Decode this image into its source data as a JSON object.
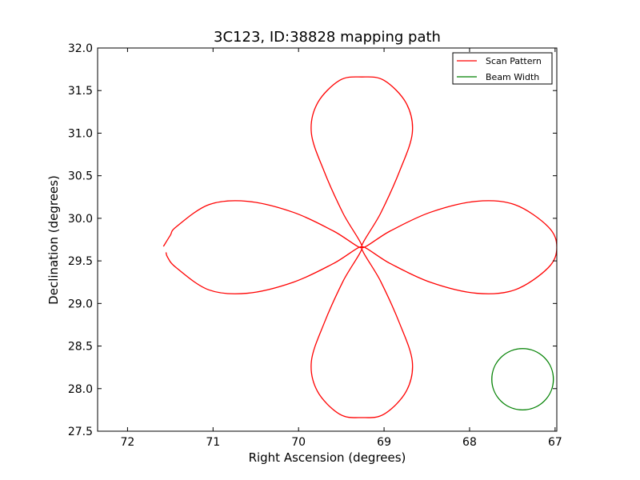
{
  "chart_data": {
    "type": "line",
    "title": "3C123, ID:38828 mapping path",
    "xlabel": "Right Ascension (degrees)",
    "ylabel": "Declination (degrees)",
    "xlim": [
      72.35,
      66.98
    ],
    "ylim": [
      27.5,
      32.0
    ],
    "x_axis_inverted": true,
    "xticks": [
      72,
      71,
      70,
      69,
      68,
      67
    ],
    "yticks": [
      27.5,
      28.0,
      28.5,
      29.0,
      29.5,
      30.0,
      30.5,
      31.0,
      31.5,
      32.0
    ],
    "ytick_format": "fixed1",
    "grid": false,
    "legend_position": "top-right",
    "series": [
      {
        "name": "Scan Pattern",
        "color": "#ff0000",
        "shape": "four-petal rose scan",
        "center": [
          69.26,
          29.66
        ],
        "amplitude": 2.0,
        "cos_dec": 0.87,
        "points": [
          [
            71.58,
            29.67
          ],
          [
            71.5,
            29.8
          ],
          [
            71.43,
            29.9
          ],
          [
            71.05,
            30.16
          ],
          [
            70.6,
            30.2
          ],
          [
            70.06,
            30.07
          ],
          [
            69.59,
            29.85
          ],
          [
            69.26,
            29.66
          ],
          [
            69.48,
            30.06
          ],
          [
            69.7,
            30.55
          ],
          [
            69.85,
            31.0
          ],
          [
            69.78,
            31.35
          ],
          [
            69.52,
            31.62
          ],
          [
            69.26,
            31.66
          ],
          [
            69.0,
            31.62
          ],
          [
            68.74,
            31.35
          ],
          [
            68.67,
            31.0
          ],
          [
            68.82,
            30.55
          ],
          [
            69.04,
            30.06
          ],
          [
            69.26,
            29.66
          ],
          [
            68.93,
            29.85
          ],
          [
            68.46,
            30.07
          ],
          [
            67.92,
            30.2
          ],
          [
            67.47,
            30.16
          ],
          [
            67.08,
            29.9
          ],
          [
            66.98,
            29.66
          ],
          [
            67.08,
            29.42
          ],
          [
            67.47,
            29.16
          ],
          [
            67.92,
            29.12
          ],
          [
            68.46,
            29.25
          ],
          [
            68.93,
            29.47
          ],
          [
            69.26,
            29.66
          ],
          [
            69.04,
            29.26
          ],
          [
            68.82,
            28.77
          ],
          [
            68.67,
            28.32
          ],
          [
            68.74,
            27.97
          ],
          [
            69.0,
            27.7
          ],
          [
            69.26,
            27.66
          ],
          [
            69.52,
            27.7
          ],
          [
            69.78,
            27.97
          ],
          [
            69.85,
            28.32
          ],
          [
            69.7,
            28.77
          ],
          [
            69.48,
            29.26
          ],
          [
            69.26,
            29.66
          ],
          [
            69.59,
            29.47
          ],
          [
            70.06,
            29.25
          ],
          [
            70.6,
            29.12
          ],
          [
            71.05,
            29.16
          ],
          [
            71.43,
            29.42
          ],
          [
            71.53,
            29.54
          ],
          [
            71.55,
            29.6
          ]
        ]
      },
      {
        "name": "Beam Width",
        "color": "#008000",
        "shape": "circle",
        "center": [
          67.38,
          28.11
        ],
        "radius_deg": 0.36
      }
    ]
  }
}
